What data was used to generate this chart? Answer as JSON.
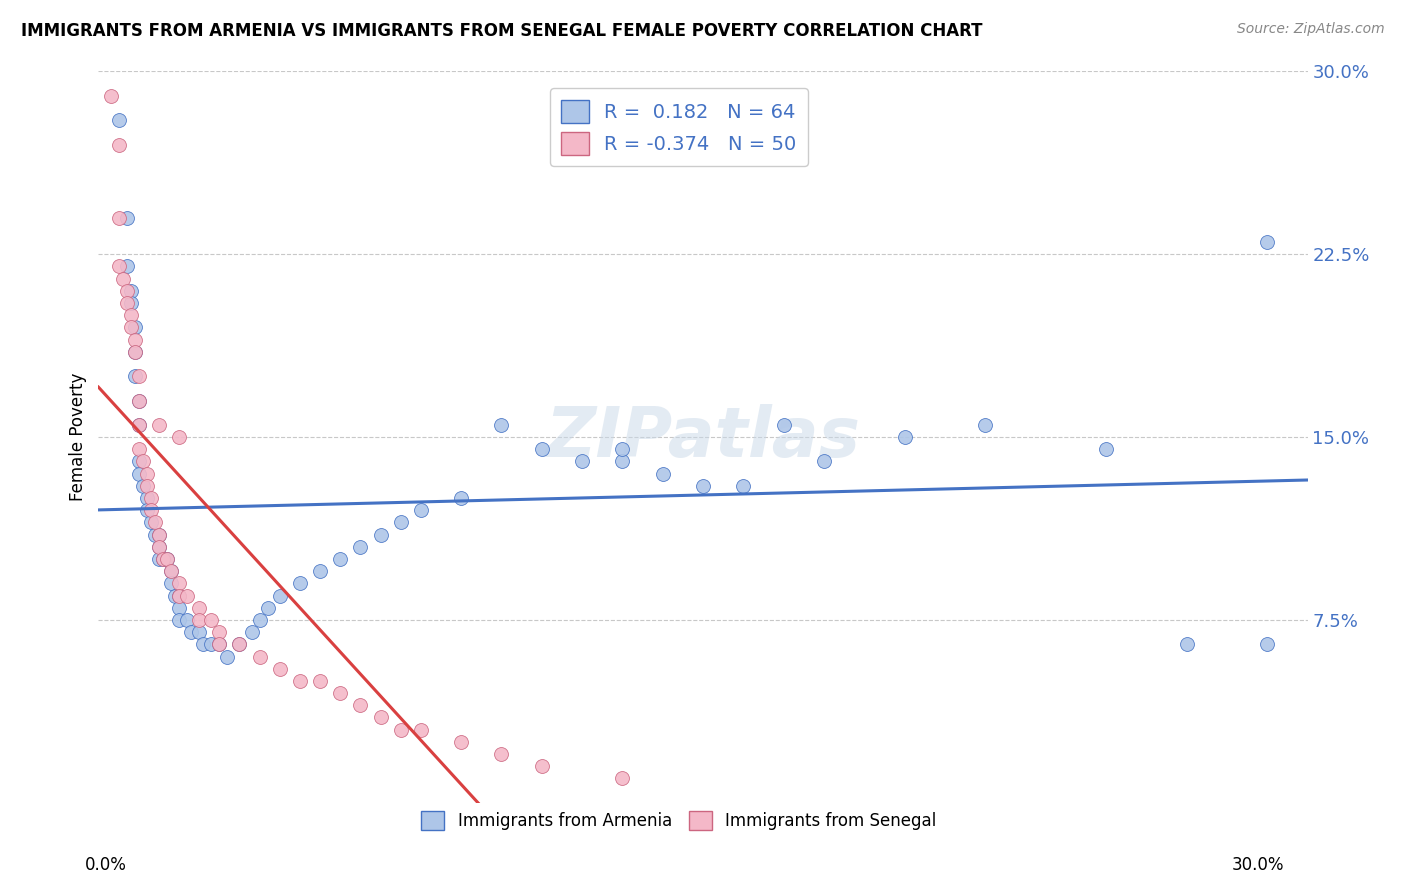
{
  "title": "IMMIGRANTS FROM ARMENIA VS IMMIGRANTS FROM SENEGAL FEMALE POVERTY CORRELATION CHART",
  "source": "Source: ZipAtlas.com",
  "ylabel": "Female Poverty",
  "xlim": [
    0.0,
    0.3
  ],
  "ylim": [
    0.0,
    0.3
  ],
  "color_armenia": "#aec6e8",
  "color_senegal": "#f4b8c8",
  "color_line_armenia": "#4472c4",
  "color_line_senegal": "#d94040",
  "color_line_senegal_dashed": "#d4a0b0",
  "armenia_r": 0.182,
  "senegal_r": -0.374,
  "armenia_n": 64,
  "senegal_n": 50,
  "armenia_x": [
    0.005,
    0.007,
    0.007,
    0.008,
    0.008,
    0.009,
    0.009,
    0.009,
    0.01,
    0.01,
    0.01,
    0.01,
    0.011,
    0.012,
    0.012,
    0.013,
    0.014,
    0.015,
    0.015,
    0.015,
    0.016,
    0.017,
    0.018,
    0.018,
    0.019,
    0.02,
    0.02,
    0.02,
    0.022,
    0.023,
    0.025,
    0.026,
    0.028,
    0.03,
    0.032,
    0.035,
    0.038,
    0.04,
    0.042,
    0.045,
    0.05,
    0.055,
    0.06,
    0.065,
    0.07,
    0.075,
    0.08,
    0.09,
    0.1,
    0.11,
    0.12,
    0.13,
    0.14,
    0.15,
    0.16,
    0.18,
    0.2,
    0.22,
    0.25,
    0.27,
    0.29,
    0.29,
    0.17,
    0.13
  ],
  "armenia_y": [
    0.28,
    0.24,
    0.22,
    0.21,
    0.205,
    0.195,
    0.185,
    0.175,
    0.165,
    0.155,
    0.14,
    0.135,
    0.13,
    0.125,
    0.12,
    0.115,
    0.11,
    0.11,
    0.105,
    0.1,
    0.1,
    0.1,
    0.095,
    0.09,
    0.085,
    0.085,
    0.08,
    0.075,
    0.075,
    0.07,
    0.07,
    0.065,
    0.065,
    0.065,
    0.06,
    0.065,
    0.07,
    0.075,
    0.08,
    0.085,
    0.09,
    0.095,
    0.1,
    0.105,
    0.11,
    0.115,
    0.12,
    0.125,
    0.155,
    0.145,
    0.14,
    0.14,
    0.135,
    0.13,
    0.13,
    0.14,
    0.15,
    0.155,
    0.145,
    0.065,
    0.23,
    0.065,
    0.155,
    0.145
  ],
  "senegal_x": [
    0.003,
    0.005,
    0.005,
    0.005,
    0.006,
    0.007,
    0.007,
    0.008,
    0.008,
    0.009,
    0.009,
    0.01,
    0.01,
    0.01,
    0.01,
    0.011,
    0.012,
    0.012,
    0.013,
    0.013,
    0.014,
    0.015,
    0.015,
    0.016,
    0.017,
    0.018,
    0.02,
    0.02,
    0.022,
    0.025,
    0.025,
    0.028,
    0.03,
    0.03,
    0.035,
    0.04,
    0.045,
    0.05,
    0.055,
    0.06,
    0.065,
    0.07,
    0.075,
    0.08,
    0.09,
    0.1,
    0.11,
    0.13,
    0.015,
    0.02
  ],
  "senegal_y": [
    0.29,
    0.27,
    0.24,
    0.22,
    0.215,
    0.21,
    0.205,
    0.2,
    0.195,
    0.19,
    0.185,
    0.175,
    0.165,
    0.155,
    0.145,
    0.14,
    0.135,
    0.13,
    0.125,
    0.12,
    0.115,
    0.11,
    0.105,
    0.1,
    0.1,
    0.095,
    0.09,
    0.085,
    0.085,
    0.08,
    0.075,
    0.075,
    0.07,
    0.065,
    0.065,
    0.06,
    0.055,
    0.05,
    0.05,
    0.045,
    0.04,
    0.035,
    0.03,
    0.03,
    0.025,
    0.02,
    0.015,
    0.01,
    0.155,
    0.15
  ]
}
